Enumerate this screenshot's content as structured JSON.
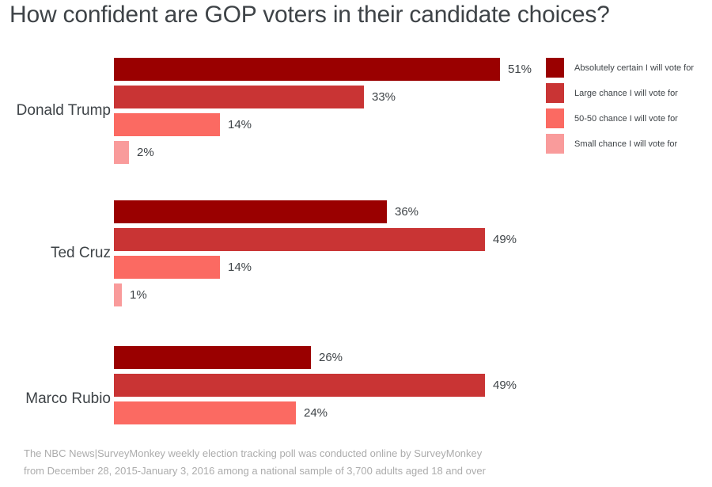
{
  "title": "How confident are GOP voters in their candidate choices?",
  "footer": {
    "line1": "The NBC News|SurveyMonkey weekly election tracking poll was conducted online by SurveyMonkey",
    "line2": "from December 28, 2015-January 3, 2016 among a national sample of 3,700 adults aged 18 and over"
  },
  "chart_data": {
    "type": "bar",
    "orientation": "horizontal",
    "title": "How confident are GOP voters in their candidate choices?",
    "value_suffix": "%",
    "axis_range": [
      0,
      51
    ],
    "grid": false,
    "legend_position": "top-right",
    "legend": [
      {
        "label": "Absolutely certain I will vote for",
        "color": "#9a0000"
      },
      {
        "label": "Large chance I will vote for",
        "color": "#c93434"
      },
      {
        "label": "50-50 chance I will vote for",
        "color": "#fb6a62"
      },
      {
        "label": "Small chance I will vote for",
        "color": "#f99b9b"
      }
    ],
    "groups": [
      {
        "label": "Donald Trump",
        "values": [
          51,
          33,
          14,
          2
        ]
      },
      {
        "label": "Ted Cruz",
        "values": [
          36,
          49,
          14,
          1
        ]
      },
      {
        "label": "Marco Rubio",
        "values": [
          26,
          49,
          24
        ]
      }
    ]
  }
}
